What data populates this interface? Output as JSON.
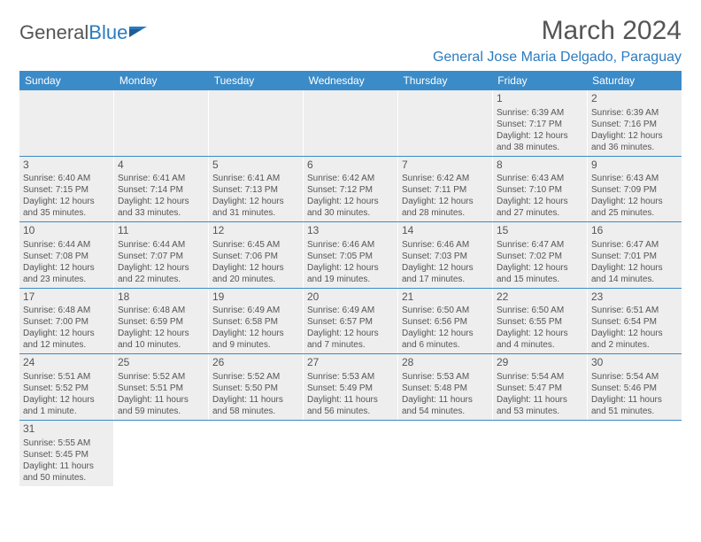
{
  "logo": {
    "text1": "General",
    "text2": "Blue"
  },
  "title": "March 2024",
  "location": "General Jose Maria Delgado, Paraguay",
  "colors": {
    "header_bg": "#3b8bc8",
    "header_text": "#ffffff",
    "cell_bg": "#eeeeee",
    "text": "#555555",
    "accent": "#2b7bbf",
    "row_border": "#3b8bc8"
  },
  "weekdays": [
    "Sunday",
    "Monday",
    "Tuesday",
    "Wednesday",
    "Thursday",
    "Friday",
    "Saturday"
  ],
  "weeks": [
    [
      null,
      null,
      null,
      null,
      null,
      {
        "n": "1",
        "sr": "Sunrise: 6:39 AM",
        "ss": "Sunset: 7:17 PM",
        "d1": "Daylight: 12 hours",
        "d2": "and 38 minutes."
      },
      {
        "n": "2",
        "sr": "Sunrise: 6:39 AM",
        "ss": "Sunset: 7:16 PM",
        "d1": "Daylight: 12 hours",
        "d2": "and 36 minutes."
      }
    ],
    [
      {
        "n": "3",
        "sr": "Sunrise: 6:40 AM",
        "ss": "Sunset: 7:15 PM",
        "d1": "Daylight: 12 hours",
        "d2": "and 35 minutes."
      },
      {
        "n": "4",
        "sr": "Sunrise: 6:41 AM",
        "ss": "Sunset: 7:14 PM",
        "d1": "Daylight: 12 hours",
        "d2": "and 33 minutes."
      },
      {
        "n": "5",
        "sr": "Sunrise: 6:41 AM",
        "ss": "Sunset: 7:13 PM",
        "d1": "Daylight: 12 hours",
        "d2": "and 31 minutes."
      },
      {
        "n": "6",
        "sr": "Sunrise: 6:42 AM",
        "ss": "Sunset: 7:12 PM",
        "d1": "Daylight: 12 hours",
        "d2": "and 30 minutes."
      },
      {
        "n": "7",
        "sr": "Sunrise: 6:42 AM",
        "ss": "Sunset: 7:11 PM",
        "d1": "Daylight: 12 hours",
        "d2": "and 28 minutes."
      },
      {
        "n": "8",
        "sr": "Sunrise: 6:43 AM",
        "ss": "Sunset: 7:10 PM",
        "d1": "Daylight: 12 hours",
        "d2": "and 27 minutes."
      },
      {
        "n": "9",
        "sr": "Sunrise: 6:43 AM",
        "ss": "Sunset: 7:09 PM",
        "d1": "Daylight: 12 hours",
        "d2": "and 25 minutes."
      }
    ],
    [
      {
        "n": "10",
        "sr": "Sunrise: 6:44 AM",
        "ss": "Sunset: 7:08 PM",
        "d1": "Daylight: 12 hours",
        "d2": "and 23 minutes."
      },
      {
        "n": "11",
        "sr": "Sunrise: 6:44 AM",
        "ss": "Sunset: 7:07 PM",
        "d1": "Daylight: 12 hours",
        "d2": "and 22 minutes."
      },
      {
        "n": "12",
        "sr": "Sunrise: 6:45 AM",
        "ss": "Sunset: 7:06 PM",
        "d1": "Daylight: 12 hours",
        "d2": "and 20 minutes."
      },
      {
        "n": "13",
        "sr": "Sunrise: 6:46 AM",
        "ss": "Sunset: 7:05 PM",
        "d1": "Daylight: 12 hours",
        "d2": "and 19 minutes."
      },
      {
        "n": "14",
        "sr": "Sunrise: 6:46 AM",
        "ss": "Sunset: 7:03 PM",
        "d1": "Daylight: 12 hours",
        "d2": "and 17 minutes."
      },
      {
        "n": "15",
        "sr": "Sunrise: 6:47 AM",
        "ss": "Sunset: 7:02 PM",
        "d1": "Daylight: 12 hours",
        "d2": "and 15 minutes."
      },
      {
        "n": "16",
        "sr": "Sunrise: 6:47 AM",
        "ss": "Sunset: 7:01 PM",
        "d1": "Daylight: 12 hours",
        "d2": "and 14 minutes."
      }
    ],
    [
      {
        "n": "17",
        "sr": "Sunrise: 6:48 AM",
        "ss": "Sunset: 7:00 PM",
        "d1": "Daylight: 12 hours",
        "d2": "and 12 minutes."
      },
      {
        "n": "18",
        "sr": "Sunrise: 6:48 AM",
        "ss": "Sunset: 6:59 PM",
        "d1": "Daylight: 12 hours",
        "d2": "and 10 minutes."
      },
      {
        "n": "19",
        "sr": "Sunrise: 6:49 AM",
        "ss": "Sunset: 6:58 PM",
        "d1": "Daylight: 12 hours",
        "d2": "and 9 minutes."
      },
      {
        "n": "20",
        "sr": "Sunrise: 6:49 AM",
        "ss": "Sunset: 6:57 PM",
        "d1": "Daylight: 12 hours",
        "d2": "and 7 minutes."
      },
      {
        "n": "21",
        "sr": "Sunrise: 6:50 AM",
        "ss": "Sunset: 6:56 PM",
        "d1": "Daylight: 12 hours",
        "d2": "and 6 minutes."
      },
      {
        "n": "22",
        "sr": "Sunrise: 6:50 AM",
        "ss": "Sunset: 6:55 PM",
        "d1": "Daylight: 12 hours",
        "d2": "and 4 minutes."
      },
      {
        "n": "23",
        "sr": "Sunrise: 6:51 AM",
        "ss": "Sunset: 6:54 PM",
        "d1": "Daylight: 12 hours",
        "d2": "and 2 minutes."
      }
    ],
    [
      {
        "n": "24",
        "sr": "Sunrise: 5:51 AM",
        "ss": "Sunset: 5:52 PM",
        "d1": "Daylight: 12 hours",
        "d2": "and 1 minute."
      },
      {
        "n": "25",
        "sr": "Sunrise: 5:52 AM",
        "ss": "Sunset: 5:51 PM",
        "d1": "Daylight: 11 hours",
        "d2": "and 59 minutes."
      },
      {
        "n": "26",
        "sr": "Sunrise: 5:52 AM",
        "ss": "Sunset: 5:50 PM",
        "d1": "Daylight: 11 hours",
        "d2": "and 58 minutes."
      },
      {
        "n": "27",
        "sr": "Sunrise: 5:53 AM",
        "ss": "Sunset: 5:49 PM",
        "d1": "Daylight: 11 hours",
        "d2": "and 56 minutes."
      },
      {
        "n": "28",
        "sr": "Sunrise: 5:53 AM",
        "ss": "Sunset: 5:48 PM",
        "d1": "Daylight: 11 hours",
        "d2": "and 54 minutes."
      },
      {
        "n": "29",
        "sr": "Sunrise: 5:54 AM",
        "ss": "Sunset: 5:47 PM",
        "d1": "Daylight: 11 hours",
        "d2": "and 53 minutes."
      },
      {
        "n": "30",
        "sr": "Sunrise: 5:54 AM",
        "ss": "Sunset: 5:46 PM",
        "d1": "Daylight: 11 hours",
        "d2": "and 51 minutes."
      }
    ],
    [
      {
        "n": "31",
        "sr": "Sunrise: 5:55 AM",
        "ss": "Sunset: 5:45 PM",
        "d1": "Daylight: 11 hours",
        "d2": "and 50 minutes."
      },
      null,
      null,
      null,
      null,
      null,
      null
    ]
  ]
}
